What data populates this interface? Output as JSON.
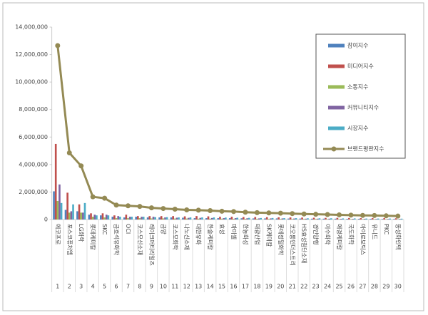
{
  "chart_data": {
    "type": "bar",
    "categories": [
      "에코프로",
      "포스코퓨처엠",
      "LG화학",
      "롯데케미칼",
      "SKC",
      "금호석유화학",
      "OCI",
      "코스모신소재",
      "레이크머티리얼즈",
      "금양",
      "코스모화학",
      "나노신소재",
      "대한유화",
      "한솔케미칼",
      "효성",
      "파미셀",
      "한농화성",
      "태광산업",
      "SK케미칼",
      "롯데정밀화학",
      "코오롱인더스트리",
      "HS효성첨단소재",
      "경인양행",
      "이수화학",
      "애경케미칼",
      "국도화학",
      "아이로보틱스",
      "유니드",
      "PKC",
      "동성화인텍"
    ],
    "ranks": [
      1,
      2,
      3,
      4,
      5,
      6,
      7,
      8,
      9,
      10,
      11,
      12,
      13,
      14,
      15,
      16,
      17,
      18,
      19,
      20,
      21,
      22,
      23,
      24,
      25,
      26,
      27,
      28,
      29,
      30
    ],
    "series": [
      {
        "name": "참여지수",
        "color": "#4f81bd",
        "values": [
          2050000,
          700000,
          600000,
          350000,
          300000,
          200000,
          150000,
          200000,
          150000,
          150000,
          150000,
          130000,
          100000,
          100000,
          100000,
          100000,
          90000,
          80000,
          80000,
          80000,
          70000,
          70000,
          60000,
          60000,
          60000,
          50000,
          50000,
          50000,
          40000,
          40000
        ]
      },
      {
        "name": "미디어지수",
        "color": "#c0504d",
        "values": [
          5500000,
          1950000,
          1100000,
          450000,
          450000,
          300000,
          350000,
          250000,
          250000,
          250000,
          250000,
          230000,
          250000,
          230000,
          200000,
          200000,
          180000,
          180000,
          170000,
          160000,
          150000,
          140000,
          130000,
          120000,
          120000,
          110000,
          100000,
          100000,
          100000,
          90000
        ]
      },
      {
        "name": "소통지수",
        "color": "#9bbb59",
        "values": [
          1350000,
          500000,
          500000,
          200000,
          150000,
          100000,
          100000,
          100000,
          80000,
          80000,
          70000,
          70000,
          60000,
          60000,
          60000,
          50000,
          50000,
          50000,
          40000,
          40000,
          40000,
          40000,
          40000,
          30000,
          30000,
          30000,
          30000,
          30000,
          20000,
          20000
        ]
      },
      {
        "name": "커뮤니티지수",
        "color": "#8064a2",
        "values": [
          2550000,
          600000,
          500000,
          350000,
          350000,
          250000,
          200000,
          200000,
          200000,
          150000,
          130000,
          120000,
          120000,
          110000,
          100000,
          100000,
          90000,
          80000,
          80000,
          80000,
          70000,
          60000,
          60000,
          60000,
          50000,
          50000,
          50000,
          40000,
          40000,
          40000
        ]
      },
      {
        "name": "시장지수",
        "color": "#4bacc6",
        "values": [
          1200000,
          1100000,
          1200000,
          300000,
          300000,
          200000,
          200000,
          200000,
          170000,
          170000,
          150000,
          150000,
          150000,
          150000,
          140000,
          130000,
          120000,
          110000,
          110000,
          100000,
          100000,
          90000,
          90000,
          90000,
          80000,
          80000,
          70000,
          70000,
          70000,
          60000
        ]
      },
      {
        "name": "브랜드평판지수",
        "color": "#948a54",
        "type": "line",
        "values": [
          12650000,
          4850000,
          3900000,
          1650000,
          1550000,
          1050000,
          1000000,
          950000,
          850000,
          800000,
          750000,
          700000,
          680000,
          650000,
          600000,
          580000,
          530000,
          500000,
          480000,
          460000,
          430000,
          400000,
          380000,
          360000,
          340000,
          320000,
          300000,
          290000,
          270000,
          250000
        ]
      }
    ],
    "ylim": [
      0,
      14000000
    ],
    "yticks": [
      {
        "value": 0,
        "label": "0"
      },
      {
        "value": 2000000,
        "label": "2,000,000"
      },
      {
        "value": 4000000,
        "label": "4,000,000"
      },
      {
        "value": 6000000,
        "label": "6,000,000"
      },
      {
        "value": 8000000,
        "label": "8,000,000"
      },
      {
        "value": 10000000,
        "label": "10,000,000"
      },
      {
        "value": 12000000,
        "label": "12,000,000"
      },
      {
        "value": 14000000,
        "label": "14,000,000"
      }
    ],
    "grid": false,
    "legend": "upper right"
  }
}
